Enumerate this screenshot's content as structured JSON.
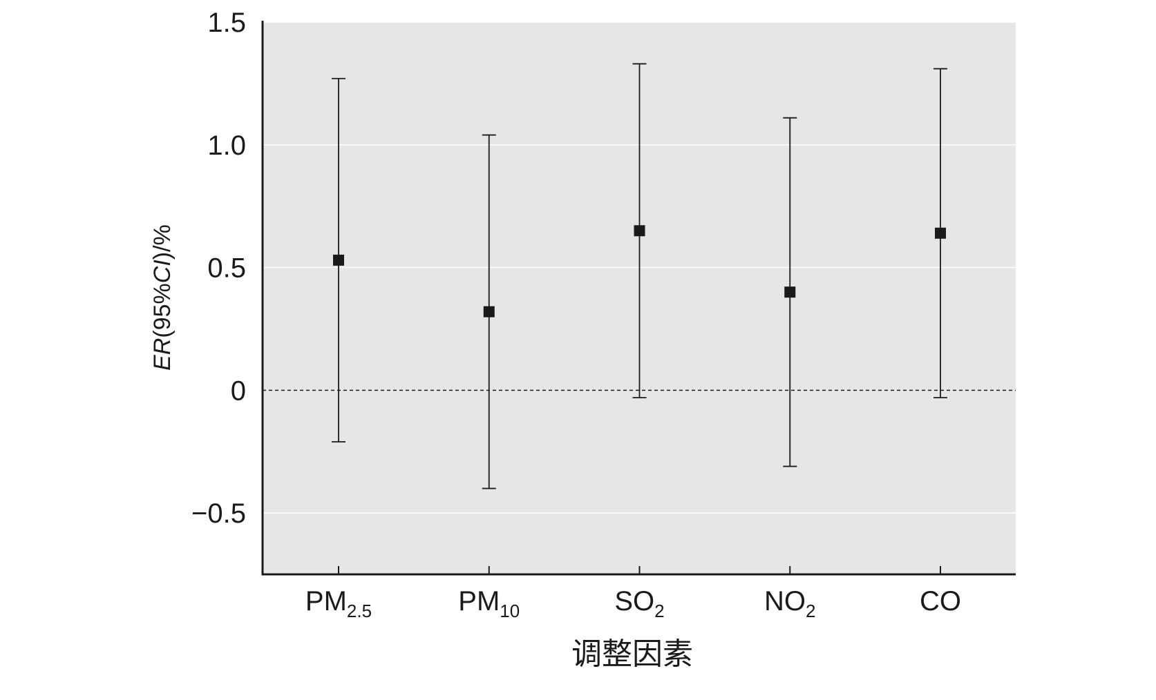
{
  "chart_data": {
    "type": "scatter",
    "title": "",
    "xlabel": "调整因素",
    "ylabel_parts": [
      {
        "text": "ER",
        "italic": true
      },
      {
        "text": "(95%",
        "italic": false
      },
      {
        "text": "CI",
        "italic": true
      },
      {
        "text": ")/%",
        "italic": false
      }
    ],
    "ylim": [
      -0.75,
      1.5
    ],
    "yticks": [
      -0.5,
      0,
      0.5,
      1.0,
      1.5
    ],
    "ytick_labels": [
      "−0.5",
      "0",
      "0.5",
      "1.0",
      "1.5"
    ],
    "grid": true,
    "reference_line": {
      "y": 0,
      "style": "dashed"
    },
    "categories": [
      {
        "base": "PM",
        "sub": "2.5"
      },
      {
        "base": "PM",
        "sub": "10"
      },
      {
        "base": "SO",
        "sub": "2"
      },
      {
        "base": "NO",
        "sub": "2"
      },
      {
        "base": "CO",
        "sub": ""
      }
    ],
    "series": [
      {
        "values": [
          0.53,
          0.32,
          0.65,
          0.4,
          0.64
        ],
        "lower": [
          -0.21,
          -0.4,
          -0.03,
          -0.31,
          -0.03
        ],
        "upper": [
          1.27,
          1.04,
          1.33,
          1.11,
          1.31
        ]
      }
    ],
    "colors": {
      "plot_background": "#e6e6e6",
      "grid": "#ffffff",
      "marker": "#1a1a1a",
      "axis": "#1a1a1a"
    }
  }
}
